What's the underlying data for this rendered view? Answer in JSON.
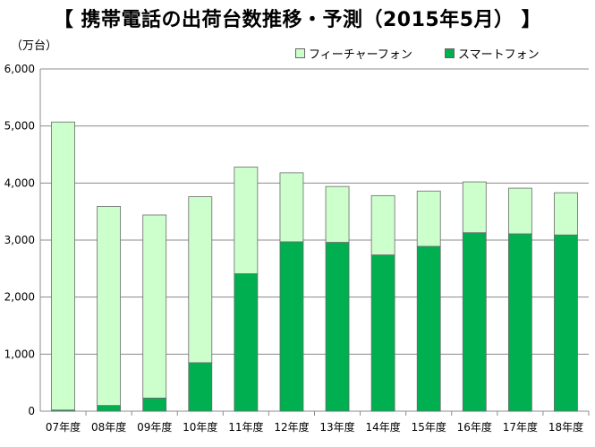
{
  "header": {
    "title": "【 携帯電話の出荷台数推移・予測（2015年5月） 】",
    "unit": "（万台）"
  },
  "chart_data": {
    "type": "bar",
    "stacked": true,
    "title": "【 携帯電話の出荷台数推移・予測（2015年5月） 】",
    "ylabel": "（万台）",
    "xlabel": "",
    "ylim": [
      0,
      6000
    ],
    "yticks": [
      "0",
      "1,000",
      "2,000",
      "3,000",
      "4,000",
      "5,000",
      "6,000"
    ],
    "grid": true,
    "legend_position": "top-right",
    "categories": [
      "07年度",
      "08年度",
      "09年度",
      "10年度",
      "11年度",
      "12年度",
      "13年度",
      "14年度",
      "15年度",
      "16年度",
      "17年度",
      "18年度"
    ],
    "series": [
      {
        "name": "スマートフォン",
        "color": "#00b050",
        "values": [
          20,
          100,
          230,
          850,
          2410,
          2970,
          2960,
          2740,
          2890,
          3130,
          3110,
          3090
        ]
      },
      {
        "name": "フィーチャーフォン",
        "color": "#ccffcc",
        "values": [
          5050,
          3490,
          3210,
          2910,
          1870,
          1210,
          980,
          1040,
          970,
          890,
          800,
          740
        ]
      }
    ]
  }
}
